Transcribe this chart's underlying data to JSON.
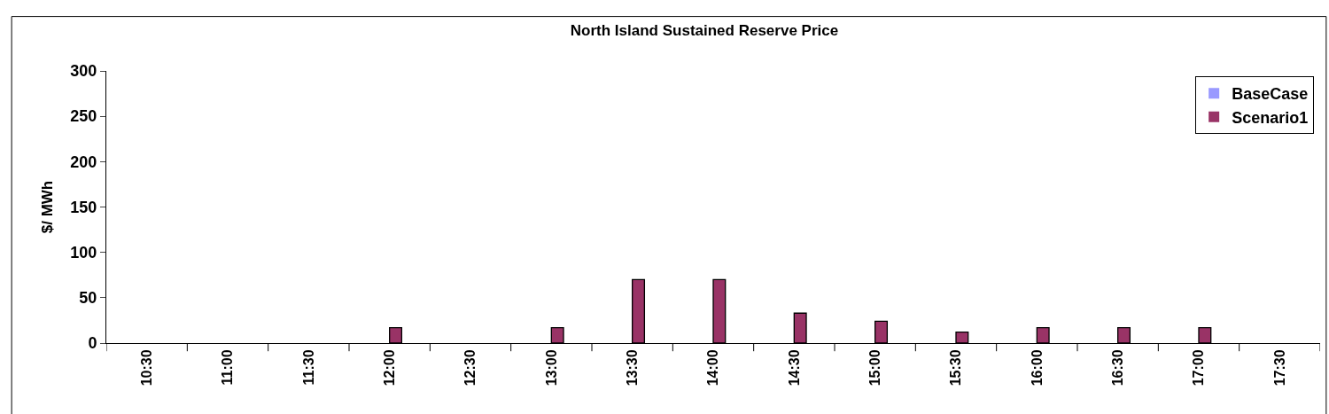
{
  "chart_data": {
    "type": "bar",
    "title": "North Island Sustained Reserve Price",
    "ylabel": "$/ MWh",
    "categories": [
      "10:30",
      "11:00",
      "11:30",
      "12:00",
      "12:30",
      "13:00",
      "13:30",
      "14:00",
      "14:30",
      "15:00",
      "15:30",
      "16:00",
      "16:30",
      "17:00",
      "17:30"
    ],
    "series": [
      {
        "name": "BaseCase",
        "color": "#9999ff",
        "values": [
          0,
          0,
          0,
          0,
          0,
          0,
          0,
          0,
          0,
          0,
          0,
          0,
          0,
          0,
          0
        ]
      },
      {
        "name": "Scenario1",
        "color": "#993366",
        "values": [
          0,
          0,
          0,
          17,
          0,
          17,
          70,
          70,
          33,
          24,
          12,
          17,
          17,
          17,
          0
        ]
      }
    ],
    "ylim": [
      0,
      300
    ],
    "yticks": [
      0,
      50,
      100,
      150,
      200,
      250,
      300
    ],
    "grid": false,
    "legend": "top right"
  }
}
